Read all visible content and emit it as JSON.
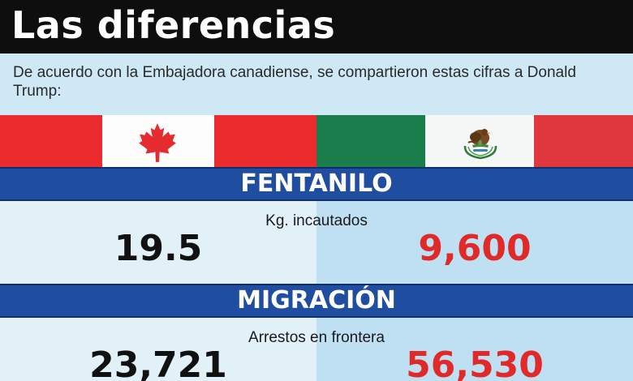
{
  "header": {
    "title": "Las diferencias"
  },
  "intro": {
    "text": "De acuerdo con la Embajadora canadiense, se compartieron estas cifras a Donald Trump:"
  },
  "flags": {
    "left": {
      "icon": "canada-flag-icon",
      "colors": [
        "#ec2b2f",
        "#fdfdfd",
        "#ec2b2f"
      ]
    },
    "right": {
      "icon": "mexico-flag-icon",
      "colors": [
        "#1a7d4b",
        "#f6f7f7",
        "#e0363d"
      ]
    }
  },
  "sections": [
    {
      "title": "FENTANILO",
      "metric": "Kg. incautados",
      "canada": "19.5",
      "mexico": "9,600"
    },
    {
      "title": "MIGRACIÓN",
      "metric": "Arrestos en frontera",
      "canada": "23,721",
      "mexico": "56,530"
    }
  ],
  "colors": {
    "band": "#1f4ea0",
    "mexico_value": "#e02a2a",
    "canada_value": "#111111"
  }
}
